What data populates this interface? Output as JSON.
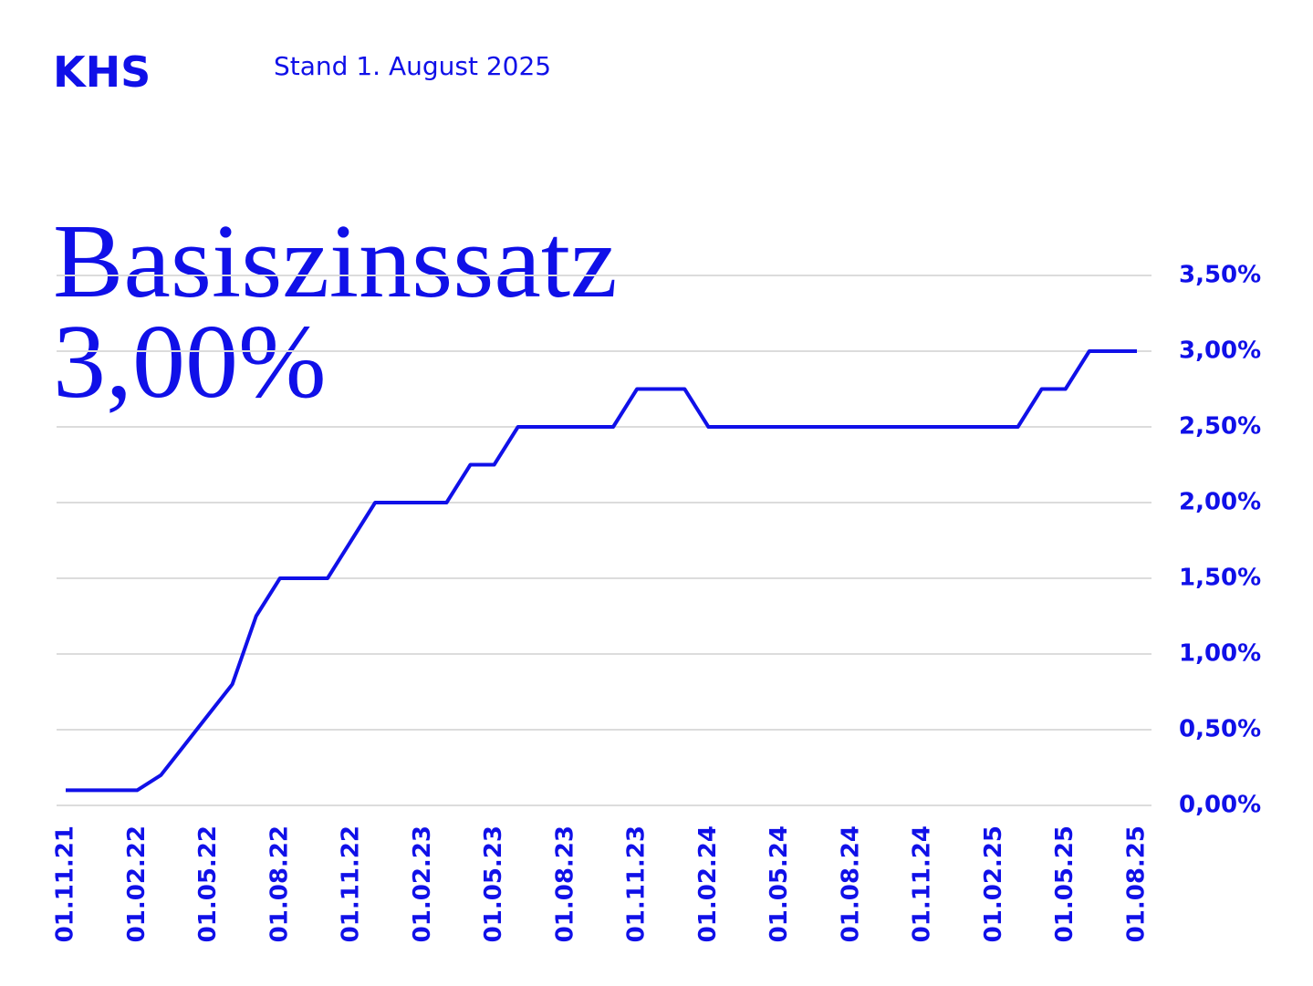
{
  "brand": "KHS",
  "chart_data": {
    "type": "line",
    "subtitle": "Stand 1. August 2025",
    "title": "Basiszinssatz",
    "annotation": "3,00%",
    "categories": [
      "01.11.21",
      null,
      null,
      "01.02.22",
      null,
      null,
      "01.05.22",
      null,
      null,
      "01.08.22",
      null,
      null,
      "01.11.22",
      null,
      null,
      "01.02.23",
      null,
      null,
      "01.05.23",
      null,
      null,
      "01.08.23",
      null,
      null,
      "01.11.23",
      null,
      null,
      "01.02.24",
      null,
      null,
      "01.05.24",
      null,
      null,
      "01.08.24",
      null,
      null,
      "01.11.24",
      null,
      null,
      "01.02.25",
      null,
      null,
      "01.05.25",
      null,
      null,
      "01.08.25"
    ],
    "values": [
      0.1,
      0.1,
      0.1,
      0.1,
      0.2,
      0.4,
      0.6,
      0.8,
      1.25,
      1.5,
      1.5,
      1.5,
      1.75,
      2.0,
      2.0,
      2.0,
      2.0,
      2.25,
      2.25,
      2.5,
      2.5,
      2.5,
      2.5,
      2.5,
      2.75,
      2.75,
      2.75,
      2.5,
      2.5,
      2.5,
      2.5,
      2.5,
      2.5,
      2.5,
      2.5,
      2.5,
      2.5,
      2.5,
      2.5,
      2.5,
      2.5,
      2.75,
      2.75,
      3.0,
      3.0,
      3.0
    ],
    "color": "#1010e8",
    "ylim": [
      0,
      3.5
    ],
    "yticks": [
      {
        "value": 0,
        "label": "0,00%"
      },
      {
        "value": 0.5,
        "label": "0,50%"
      },
      {
        "value": 1,
        "label": "1,00%"
      },
      {
        "value": 1.5,
        "label": "1,50%"
      },
      {
        "value": 2,
        "label": "2,00%"
      },
      {
        "value": 2.5,
        "label": "2,50%"
      },
      {
        "value": 3,
        "label": "3,00%"
      },
      {
        "value": 3.5,
        "label": "3,50%"
      }
    ],
    "grid": true
  }
}
